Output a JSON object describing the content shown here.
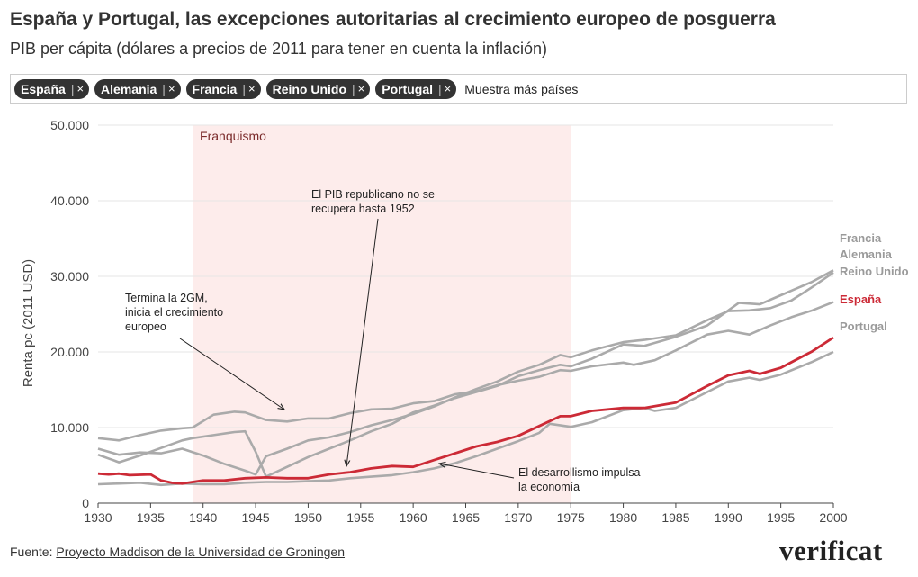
{
  "header": {
    "title": "España y Portugal, las excepciones autoritarias al crecimiento europeo de posguerra",
    "subtitle": "PIB per cápita (dólares a precios de 2011 para tener en cuenta la inflación)"
  },
  "selector": {
    "chips": [
      "España",
      "Alemania",
      "Francia",
      "Reino Unido",
      "Portugal"
    ],
    "remove_glyph": "×",
    "more_label": "Muestra más países"
  },
  "chart_data": {
    "type": "line",
    "title": "España y Portugal, las excepciones autoritarias al crecimiento europeo de posguerra",
    "xlabel": "",
    "ylabel": "Renta pc (2011 USD)",
    "xlim": [
      1930,
      2000
    ],
    "ylim": [
      0,
      50000
    ],
    "x_ticks": [
      1930,
      1935,
      1940,
      1945,
      1950,
      1955,
      1960,
      1965,
      1970,
      1975,
      1980,
      1985,
      1990,
      1995,
      2000
    ],
    "y_ticks": [
      0,
      10000,
      20000,
      30000,
      40000,
      50000
    ],
    "y_tick_labels": [
      "0",
      "10.000",
      "20.000",
      "30.000",
      "40.000",
      "50.000"
    ],
    "highlight_band": {
      "from": 1939,
      "to": 1975,
      "label": "Franquismo"
    },
    "series": [
      {
        "name": "Francia",
        "color": "#aaaaaa",
        "highlight": false,
        "points": [
          [
            1930,
            7200
          ],
          [
            1932,
            6400
          ],
          [
            1934,
            6700
          ],
          [
            1936,
            6600
          ],
          [
            1938,
            7200
          ],
          [
            1940,
            6300
          ],
          [
            1942,
            5200
          ],
          [
            1944,
            4300
          ],
          [
            1945,
            3800
          ],
          [
            1946,
            6200
          ],
          [
            1948,
            7200
          ],
          [
            1950,
            8300
          ],
          [
            1952,
            8700
          ],
          [
            1954,
            9400
          ],
          [
            1956,
            10300
          ],
          [
            1958,
            11000
          ],
          [
            1960,
            11800
          ],
          [
            1962,
            12800
          ],
          [
            1964,
            14000
          ],
          [
            1966,
            15100
          ],
          [
            1968,
            16100
          ],
          [
            1970,
            17400
          ],
          [
            1972,
            18300
          ],
          [
            1974,
            19600
          ],
          [
            1975,
            19300
          ],
          [
            1977,
            20200
          ],
          [
            1980,
            21300
          ],
          [
            1982,
            21600
          ],
          [
            1985,
            22200
          ],
          [
            1988,
            24200
          ],
          [
            1990,
            25400
          ],
          [
            1992,
            25500
          ],
          [
            1994,
            25800
          ],
          [
            1996,
            26800
          ],
          [
            1998,
            28600
          ],
          [
            2000,
            30500
          ]
        ]
      },
      {
        "name": "Alemania",
        "color": "#aaaaaa",
        "highlight": false,
        "points": [
          [
            1930,
            6400
          ],
          [
            1932,
            5400
          ],
          [
            1934,
            6300
          ],
          [
            1936,
            7300
          ],
          [
            1938,
            8300
          ],
          [
            1939,
            8600
          ],
          [
            1941,
            9000
          ],
          [
            1943,
            9400
          ],
          [
            1944,
            9500
          ],
          [
            1945,
            6800
          ],
          [
            1946,
            3500
          ],
          [
            1948,
            4800
          ],
          [
            1950,
            6100
          ],
          [
            1952,
            7200
          ],
          [
            1954,
            8300
          ],
          [
            1956,
            9500
          ],
          [
            1958,
            10500
          ],
          [
            1960,
            12000
          ],
          [
            1962,
            12900
          ],
          [
            1964,
            13900
          ],
          [
            1966,
            14700
          ],
          [
            1968,
            15500
          ],
          [
            1970,
            16800
          ],
          [
            1972,
            17600
          ],
          [
            1974,
            18300
          ],
          [
            1975,
            18100
          ],
          [
            1977,
            19100
          ],
          [
            1980,
            21000
          ],
          [
            1982,
            20800
          ],
          [
            1985,
            22000
          ],
          [
            1988,
            23500
          ],
          [
            1990,
            25500
          ],
          [
            1991,
            26500
          ],
          [
            1993,
            26300
          ],
          [
            1995,
            27500
          ],
          [
            1998,
            29300
          ],
          [
            2000,
            30800
          ]
        ]
      },
      {
        "name": "Reino Unido",
        "color": "#aaaaaa",
        "highlight": false,
        "points": [
          [
            1930,
            8600
          ],
          [
            1932,
            8300
          ],
          [
            1934,
            9000
          ],
          [
            1936,
            9600
          ],
          [
            1938,
            9900
          ],
          [
            1939,
            10000
          ],
          [
            1941,
            11700
          ],
          [
            1943,
            12100
          ],
          [
            1944,
            12000
          ],
          [
            1946,
            11000
          ],
          [
            1948,
            10800
          ],
          [
            1950,
            11200
          ],
          [
            1952,
            11200
          ],
          [
            1954,
            11900
          ],
          [
            1956,
            12400
          ],
          [
            1958,
            12500
          ],
          [
            1960,
            13200
          ],
          [
            1962,
            13500
          ],
          [
            1964,
            14400
          ],
          [
            1966,
            14800
          ],
          [
            1968,
            15600
          ],
          [
            1970,
            16200
          ],
          [
            1972,
            16700
          ],
          [
            1974,
            17600
          ],
          [
            1975,
            17500
          ],
          [
            1977,
            18100
          ],
          [
            1980,
            18600
          ],
          [
            1981,
            18300
          ],
          [
            1983,
            18900
          ],
          [
            1985,
            20200
          ],
          [
            1988,
            22300
          ],
          [
            1990,
            22800
          ],
          [
            1992,
            22300
          ],
          [
            1994,
            23500
          ],
          [
            1996,
            24600
          ],
          [
            1998,
            25500
          ],
          [
            2000,
            26600
          ]
        ]
      },
      {
        "name": "Portugal",
        "color": "#aaaaaa",
        "highlight": false,
        "points": [
          [
            1930,
            2500
          ],
          [
            1932,
            2600
          ],
          [
            1934,
            2700
          ],
          [
            1936,
            2400
          ],
          [
            1938,
            2600
          ],
          [
            1940,
            2500
          ],
          [
            1942,
            2500
          ],
          [
            1944,
            2700
          ],
          [
            1946,
            2800
          ],
          [
            1948,
            2800
          ],
          [
            1950,
            2900
          ],
          [
            1952,
            3000
          ],
          [
            1954,
            3300
          ],
          [
            1956,
            3500
          ],
          [
            1958,
            3700
          ],
          [
            1960,
            4100
          ],
          [
            1962,
            4600
          ],
          [
            1964,
            5300
          ],
          [
            1966,
            6200
          ],
          [
            1968,
            7200
          ],
          [
            1970,
            8200
          ],
          [
            1972,
            9300
          ],
          [
            1973,
            10500
          ],
          [
            1975,
            10100
          ],
          [
            1977,
            10700
          ],
          [
            1980,
            12300
          ],
          [
            1982,
            12600
          ],
          [
            1983,
            12200
          ],
          [
            1985,
            12600
          ],
          [
            1988,
            14700
          ],
          [
            1990,
            16100
          ],
          [
            1992,
            16600
          ],
          [
            1993,
            16300
          ],
          [
            1995,
            17000
          ],
          [
            1998,
            18700
          ],
          [
            2000,
            20000
          ]
        ]
      },
      {
        "name": "España",
        "color": "#cc2a36",
        "highlight": true,
        "points": [
          [
            1930,
            3900
          ],
          [
            1931,
            3800
          ],
          [
            1932,
            3900
          ],
          [
            1933,
            3700
          ],
          [
            1935,
            3800
          ],
          [
            1936,
            3000
          ],
          [
            1937,
            2700
          ],
          [
            1938,
            2600
          ],
          [
            1939,
            2800
          ],
          [
            1940,
            3000
          ],
          [
            1942,
            3000
          ],
          [
            1944,
            3300
          ],
          [
            1946,
            3400
          ],
          [
            1948,
            3300
          ],
          [
            1950,
            3300
          ],
          [
            1952,
            3800
          ],
          [
            1954,
            4100
          ],
          [
            1956,
            4600
          ],
          [
            1958,
            4900
          ],
          [
            1960,
            4800
          ],
          [
            1962,
            5700
          ],
          [
            1964,
            6600
          ],
          [
            1966,
            7500
          ],
          [
            1968,
            8100
          ],
          [
            1970,
            8900
          ],
          [
            1972,
            10200
          ],
          [
            1974,
            11500
          ],
          [
            1975,
            11500
          ],
          [
            1977,
            12200
          ],
          [
            1980,
            12600
          ],
          [
            1982,
            12600
          ],
          [
            1985,
            13300
          ],
          [
            1988,
            15500
          ],
          [
            1990,
            16900
          ],
          [
            1992,
            17500
          ],
          [
            1993,
            17100
          ],
          [
            1995,
            17900
          ],
          [
            1998,
            20100
          ],
          [
            2000,
            21900
          ]
        ]
      }
    ],
    "annotations": [
      {
        "lines": [
          "El PIB republicano no se",
          "recupera hasta 1952"
        ]
      },
      {
        "lines": [
          "Termina la 2GM,",
          "inicia el crecimiento",
          "europeo"
        ]
      },
      {
        "lines": [
          "El desarrollismo impulsa",
          "la economía"
        ]
      }
    ]
  },
  "footer": {
    "source_prefix": "Fuente: ",
    "source_link": "Proyecto Maddison de la Universidad de Groningen"
  },
  "brand": {
    "logo_text": "verificat"
  }
}
